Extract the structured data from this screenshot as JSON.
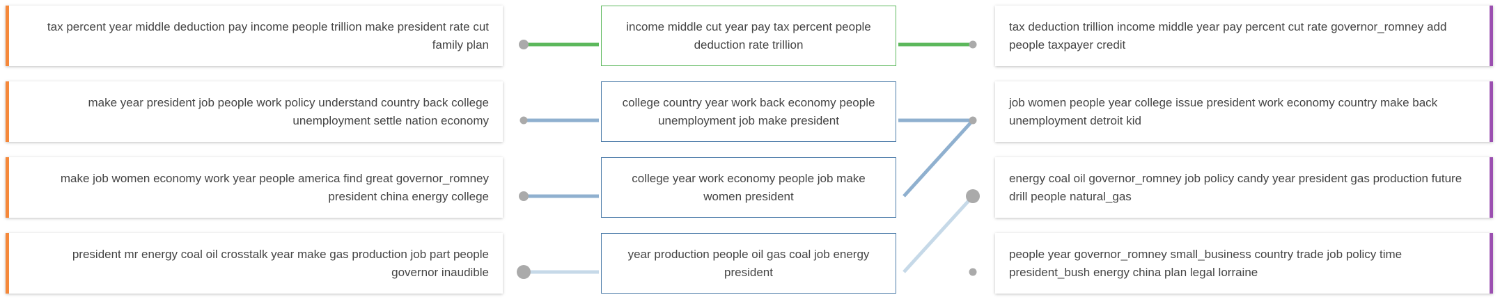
{
  "left_topics": [
    {
      "text": "tax percent year middle deduction pay income people trillion make president rate cut family plan"
    },
    {
      "text": "make year president job people work policy understand country back college unemployment settle nation economy"
    },
    {
      "text": "make job women economy work year people america find great governor_romney president china energy college"
    },
    {
      "text": "president mr energy coal oil crosstalk year make gas production job part people governor inaudible"
    }
  ],
  "middle_topics": [
    {
      "text": "income middle cut year pay tax percent people deduction rate trillion",
      "style": "green"
    },
    {
      "text": "college country year work back economy people unemployment job make president",
      "style": "blue"
    },
    {
      "text": "college year work economy people job make women president",
      "style": "blue"
    },
    {
      "text": "year production people oil gas coal job energy president",
      "style": "blue"
    }
  ],
  "right_topics": [
    {
      "text": "tax deduction trillion income middle year pay percent cut rate governor_romney add people taxpayer credit"
    },
    {
      "text": "job women people year college issue president work economy country make back unemployment detroit kid"
    },
    {
      "text": "energy coal oil governor_romney job policy candy year president gas production future drill people natural_gas"
    },
    {
      "text": "people year governor_romney small_business country trade job policy time president_bush energy china plan legal lorraine"
    }
  ],
  "colors": {
    "left_accent": "#f5883a",
    "right_accent": "#9b4fb0",
    "green_link": "#5cb85c",
    "blue_link": "#8fb0cf",
    "light_link": "#c6d9e8",
    "node": "#aaaaaa"
  },
  "left_links": [
    {
      "row": 0,
      "strength": "green",
      "node_size": "medium"
    },
    {
      "row": 1,
      "strength": "blue",
      "node_size": "small"
    },
    {
      "row": 2,
      "strength": "blue",
      "node_size": "medium"
    },
    {
      "row": 3,
      "strength": "light",
      "node_size": "large"
    }
  ],
  "right_links": [
    {
      "from_row": 0,
      "to_row": 0,
      "strength": "green"
    },
    {
      "from_row": 1,
      "to_row": 1,
      "strength": "blue"
    },
    {
      "from_row": 2,
      "to_row": 1,
      "strength": "blue"
    },
    {
      "from_row": 3,
      "to_row": 2,
      "strength": "light"
    }
  ],
  "right_nodes": [
    {
      "row": 0,
      "node_size": "small"
    },
    {
      "row": 1,
      "node_size": "small"
    },
    {
      "row": 2,
      "node_size": "large"
    },
    {
      "row": 3,
      "node_size": "small"
    }
  ]
}
